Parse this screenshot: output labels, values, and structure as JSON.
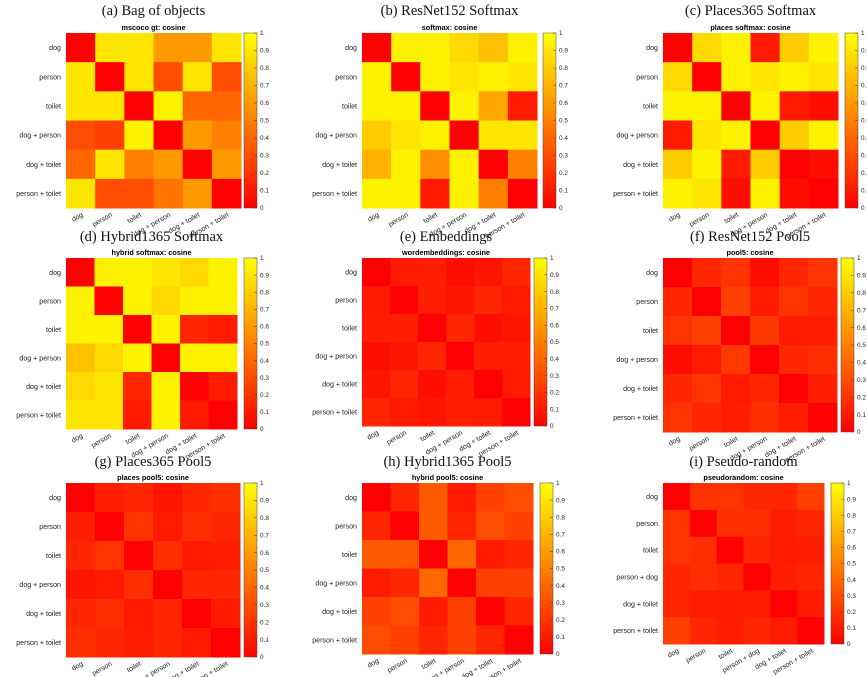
{
  "colormap": {
    "low": "#ff0000",
    "mid": "#ff8000",
    "high": "#ffff00"
  },
  "colorbar_ticks": [
    "0",
    "0.1",
    "0.2",
    "0.3",
    "0.4",
    "0.5",
    "0.6",
    "0.7",
    "0.8",
    "0.9",
    "1"
  ],
  "chart_data": [
    {
      "type": "heatmap",
      "caption": "(a) Bag of objects",
      "title": "mscoco gt: cosine",
      "labels": [
        "dog",
        "person",
        "toilet",
        "dog + person",
        "dog + toilet",
        "person + toilet"
      ],
      "values": [
        [
          0,
          0.9,
          0.9,
          0.6,
          0.6,
          0.9
        ],
        [
          0.9,
          0,
          0.9,
          0.3,
          0.9,
          0.3
        ],
        [
          0.9,
          0.9,
          0,
          0.95,
          0.4,
          0.4
        ],
        [
          0.3,
          0.25,
          0.95,
          0,
          0.6,
          0.5
        ],
        [
          0.4,
          0.9,
          0.5,
          0.6,
          0,
          0.6
        ],
        [
          0.9,
          0.3,
          0.3,
          0.45,
          0.6,
          0
        ]
      ],
      "clim": [
        0,
        1
      ]
    },
    {
      "type": "heatmap",
      "caption": "(b) ResNet152 Softmax",
      "title": "softmax: cosine",
      "labels": [
        "dog",
        "person",
        "toilet",
        "dog + person",
        "dog + toilet",
        "person + toilet"
      ],
      "values": [
        [
          0,
          0.95,
          0.95,
          0.85,
          0.75,
          0.95
        ],
        [
          0.95,
          0,
          0.95,
          0.9,
          0.95,
          0.9
        ],
        [
          0.95,
          0.95,
          0,
          0.95,
          0.65,
          0.1
        ],
        [
          0.8,
          0.9,
          0.95,
          0,
          0.9,
          0.9
        ],
        [
          0.7,
          0.95,
          0.55,
          0.95,
          0,
          0.5
        ],
        [
          0.95,
          0.95,
          0.1,
          0.95,
          0.5,
          0
        ]
      ],
      "clim": [
        0,
        1
      ]
    },
    {
      "type": "heatmap",
      "caption": "(c) Places365 Softmax",
      "title": "places softmax: cosine",
      "labels": [
        "dog",
        "person",
        "toilet",
        "dog + person",
        "dog + toilet",
        "person + toilet"
      ],
      "values": [
        [
          0,
          0.85,
          0.95,
          0.1,
          0.8,
          0.95
        ],
        [
          0.85,
          0,
          0.95,
          0.9,
          0.95,
          0.9
        ],
        [
          0.95,
          0.95,
          0,
          0.95,
          0.1,
          0.05
        ],
        [
          0.1,
          0.9,
          0.95,
          0,
          0.8,
          0.95
        ],
        [
          0.8,
          0.95,
          0.1,
          0.8,
          0,
          0.05
        ],
        [
          0.95,
          0.9,
          0.05,
          0.95,
          0.05,
          0
        ]
      ],
      "clim": [
        0,
        1
      ]
    },
    {
      "type": "heatmap",
      "caption": "(d) Hybrid1365 Softmax",
      "title": "hybrid softmax: cosine",
      "labels": [
        "dog",
        "person",
        "toilet",
        "dog + person",
        "dog + toilet",
        "person + toilet"
      ],
      "values": [
        [
          0,
          0.95,
          0.95,
          0.9,
          0.85,
          0.95
        ],
        [
          0.95,
          0,
          0.95,
          0.85,
          0.95,
          0.95
        ],
        [
          0.95,
          0.95,
          0,
          0.95,
          0.15,
          0.1
        ],
        [
          0.75,
          0.85,
          0.95,
          0,
          0.95,
          0.95
        ],
        [
          0.85,
          0.9,
          0.15,
          0.95,
          0,
          0.1
        ],
        [
          0.9,
          0.9,
          0.1,
          0.95,
          0.1,
          0
        ]
      ],
      "clim": [
        0,
        1
      ]
    },
    {
      "type": "heatmap",
      "caption": "(e) Embeddings",
      "title": "wordembeddings: cosine",
      "labels": [
        "dog",
        "person",
        "toilet",
        "dog + person",
        "dog + toilet",
        "person + toilet"
      ],
      "values": [
        [
          0,
          0.1,
          0.12,
          0.05,
          0.08,
          0.15
        ],
        [
          0.1,
          0,
          0.12,
          0.08,
          0.15,
          0.1
        ],
        [
          0.12,
          0.12,
          0,
          0.15,
          0.05,
          0.08
        ],
        [
          0.05,
          0.08,
          0.15,
          0,
          0.12,
          0.12
        ],
        [
          0.08,
          0.15,
          0.05,
          0.12,
          0,
          0.1
        ],
        [
          0.15,
          0.1,
          0.08,
          0.12,
          0.1,
          0
        ]
      ],
      "clim": [
        0,
        1
      ]
    },
    {
      "type": "heatmap",
      "caption": "(f) ResNet152 Pool5",
      "title": "pool5: cosine",
      "labels": [
        "dog",
        "person",
        "toilet",
        "dog + person",
        "dog + toilet",
        "person + toilet"
      ],
      "values": [
        [
          0,
          0.15,
          0.2,
          0.05,
          0.15,
          0.2
        ],
        [
          0.15,
          0,
          0.25,
          0.1,
          0.2,
          0.15
        ],
        [
          0.2,
          0.25,
          0,
          0.22,
          0.1,
          0.12
        ],
        [
          0.05,
          0.1,
          0.22,
          0,
          0.15,
          0.18
        ],
        [
          0.15,
          0.2,
          0.1,
          0.15,
          0,
          0.12
        ],
        [
          0.2,
          0.15,
          0.12,
          0.18,
          0.12,
          0
        ]
      ],
      "clim": [
        0,
        1
      ]
    },
    {
      "type": "heatmap",
      "caption": "(g) Places365 Pool5",
      "title": "places pool5: cosine",
      "labels": [
        "dog",
        "person",
        "toilet",
        "dog + person",
        "dog + toilet",
        "person + toilet"
      ],
      "values": [
        [
          0,
          0.12,
          0.15,
          0.08,
          0.15,
          0.18
        ],
        [
          0.12,
          0,
          0.2,
          0.1,
          0.18,
          0.15
        ],
        [
          0.15,
          0.2,
          0,
          0.18,
          0.1,
          0.12
        ],
        [
          0.08,
          0.1,
          0.18,
          0,
          0.15,
          0.15
        ],
        [
          0.15,
          0.18,
          0.1,
          0.15,
          0,
          0.1
        ],
        [
          0.18,
          0.15,
          0.12,
          0.15,
          0.1,
          0
        ]
      ],
      "clim": [
        0,
        1
      ]
    },
    {
      "type": "heatmap",
      "caption": "(h) Hybrid1365 Pool5",
      "title": "hybrid pool5: cosine",
      "labels": [
        "dog",
        "person",
        "toilet",
        "dog + person",
        "dog + toilet",
        "person + toilet"
      ],
      "values": [
        [
          0,
          0.15,
          0.35,
          0.1,
          0.25,
          0.3
        ],
        [
          0.15,
          0,
          0.35,
          0.15,
          0.3,
          0.25
        ],
        [
          0.35,
          0.35,
          0,
          0.4,
          0.1,
          0.15
        ],
        [
          0.1,
          0.15,
          0.4,
          0,
          0.25,
          0.25
        ],
        [
          0.25,
          0.3,
          0.1,
          0.25,
          0,
          0.15
        ],
        [
          0.3,
          0.25,
          0.15,
          0.25,
          0.15,
          0
        ]
      ],
      "clim": [
        0,
        1
      ]
    },
    {
      "type": "heatmap",
      "caption": "(i) Pseudo-random",
      "title": "pseudorandom: cosine",
      "labels": [
        "dog",
        "person",
        "toilet",
        "person + dog",
        "dog + toilet",
        "person + toilet"
      ],
      "values": [
        [
          0,
          0.2,
          0.2,
          0.15,
          0.15,
          0.25
        ],
        [
          0.2,
          0,
          0.18,
          0.18,
          0.12,
          0.15
        ],
        [
          0.2,
          0.18,
          0,
          0.15,
          0.1,
          0.12
        ],
        [
          0.15,
          0.18,
          0.15,
          0,
          0.12,
          0.15
        ],
        [
          0.15,
          0.12,
          0.1,
          0.12,
          0,
          0.1
        ],
        [
          0.25,
          0.15,
          0.12,
          0.15,
          0.1,
          0
        ]
      ],
      "clim": [
        0,
        1
      ]
    }
  ]
}
